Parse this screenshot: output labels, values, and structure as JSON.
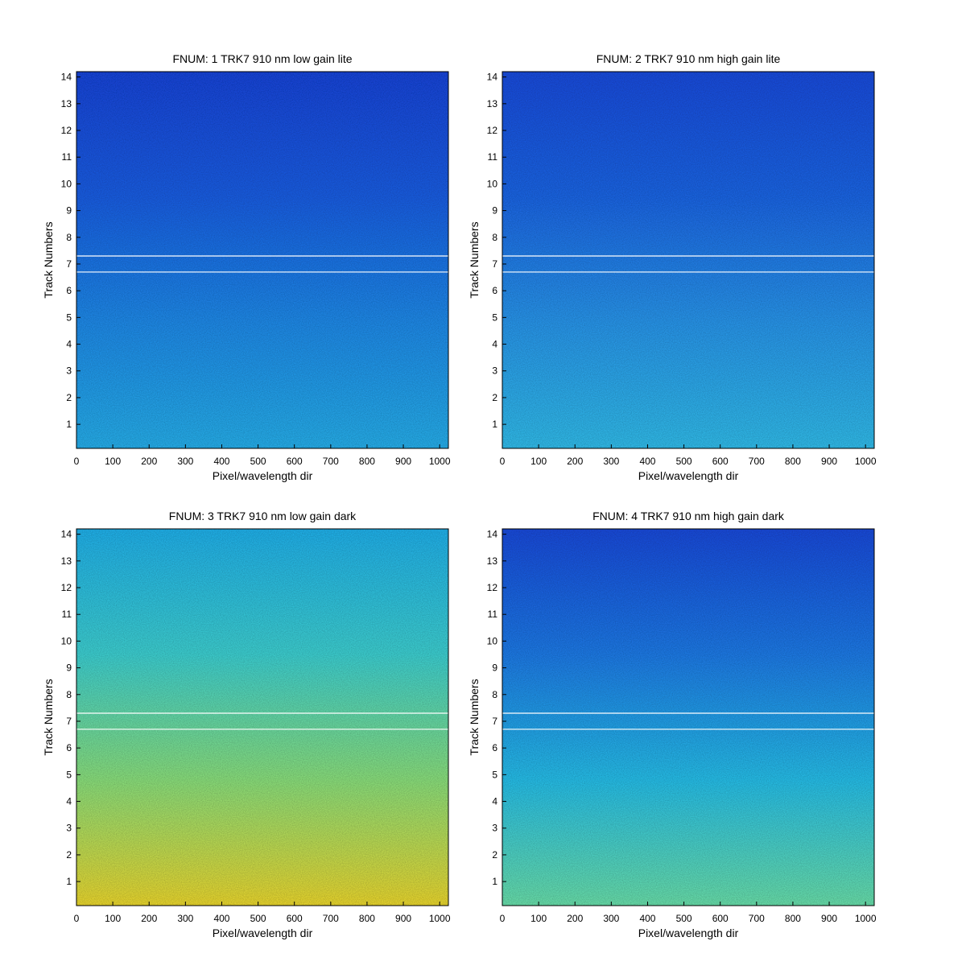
{
  "chart_data": [
    {
      "type": "heatmap",
      "title": "FNUM: 1 TRK7 910 nm low gain lite",
      "xlabel": "Pixel/wavelength dir",
      "ylabel": "Track Numbers",
      "xlim": [
        0,
        1024
      ],
      "ylim": [
        0.1,
        14.2
      ],
      "xticks": [
        0,
        100,
        200,
        300,
        400,
        500,
        600,
        700,
        800,
        900,
        1000
      ],
      "yticks": [
        1,
        2,
        3,
        4,
        5,
        6,
        7,
        8,
        9,
        10,
        11,
        12,
        13,
        14
      ],
      "colors": [
        "#1748e0",
        "#1a62ea",
        "#2090f0",
        "#28b6f2"
      ],
      "white_lines": [
        6.7,
        7.3
      ]
    },
    {
      "type": "heatmap",
      "title": "FNUM: 2 TRK7 910 nm high gain lite",
      "xlabel": "Pixel/wavelength dir",
      "ylabel": "Track Numbers",
      "xlim": [
        0,
        1024
      ],
      "ylim": [
        0.1,
        14.2
      ],
      "xticks": [
        0,
        100,
        200,
        300,
        400,
        500,
        600,
        700,
        800,
        900,
        1000
      ],
      "yticks": [
        1,
        2,
        3,
        4,
        5,
        6,
        7,
        8,
        9,
        10,
        11,
        12,
        13,
        14
      ],
      "colors": [
        "#1a4fe4",
        "#1d6aec",
        "#2a9cf2",
        "#34c4f2"
      ],
      "white_lines": [
        6.7,
        7.3
      ]
    },
    {
      "type": "heatmap",
      "title": "FNUM: 3 TRK7 910 nm low gain dark",
      "xlabel": "Pixel/wavelength dir",
      "ylabel": "Track Numbers",
      "xlim": [
        0,
        1024
      ],
      "ylim": [
        0.1,
        14.2
      ],
      "xticks": [
        0,
        100,
        200,
        300,
        400,
        500,
        600,
        700,
        800,
        900,
        1000
      ],
      "yticks": [
        1,
        2,
        3,
        4,
        5,
        6,
        7,
        8,
        9,
        10,
        11,
        12,
        13,
        14
      ],
      "colors": [
        "#22b8f2",
        "#40d8d8",
        "#90e880",
        "#f4e030"
      ],
      "white_lines": [
        6.7,
        7.3
      ]
    },
    {
      "type": "heatmap",
      "title": "FNUM: 4 TRK7 910 nm high gain dark",
      "xlabel": "Pixel/wavelength dir",
      "ylabel": "Track Numbers",
      "xlim": [
        0,
        1024
      ],
      "ylim": [
        0.1,
        14.2
      ],
      "xticks": [
        0,
        100,
        200,
        300,
        400,
        500,
        600,
        700,
        800,
        900,
        1000
      ],
      "yticks": [
        1,
        2,
        3,
        4,
        5,
        6,
        7,
        8,
        9,
        10,
        11,
        12,
        13,
        14
      ],
      "colors": [
        "#1a4ee2",
        "#1f80ee",
        "#28c6f0",
        "#6ee8b0"
      ],
      "white_lines": [
        6.7,
        7.3
      ]
    }
  ]
}
